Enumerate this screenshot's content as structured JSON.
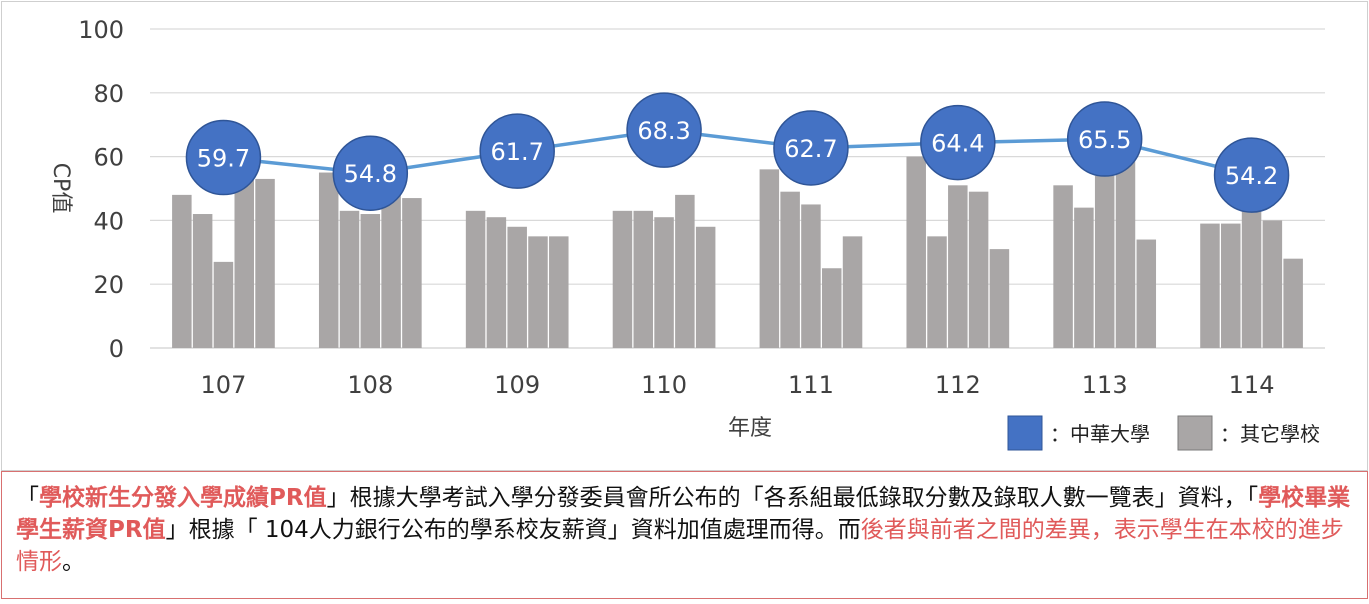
{
  "chart_data": {
    "type": "bar",
    "xlabel": "年度",
    "ylabel": "CP值",
    "ylim": [
      0,
      100
    ],
    "yticks": [
      0,
      20,
      40,
      60,
      80,
      100
    ],
    "grid": true,
    "categories": [
      "107",
      "108",
      "109",
      "110",
      "111",
      "112",
      "113",
      "114"
    ],
    "other_school_bars": [
      [
        48,
        42,
        27,
        57,
        53
      ],
      [
        55,
        43,
        42,
        48,
        47
      ],
      [
        43,
        41,
        38,
        35,
        35
      ],
      [
        43,
        43,
        41,
        48,
        38
      ],
      [
        56,
        49,
        45,
        25,
        35
      ],
      [
        60,
        35,
        51,
        49,
        31
      ],
      [
        51,
        44,
        54,
        60,
        34
      ],
      [
        39,
        39,
        44,
        40,
        28
      ]
    ],
    "line": {
      "values": [
        59.7,
        54.8,
        61.7,
        68.3,
        62.7,
        64.4,
        65.5,
        54.2
      ],
      "labels": [
        "59.7",
        "54.8",
        "61.7",
        "68.3",
        "62.7",
        "64.4",
        "65.5",
        "54.2"
      ]
    },
    "legend": {
      "position": "bottom-right",
      "items": [
        {
          "label": "：中華大學",
          "color": "#4472c4"
        },
        {
          "label": "：其它學校",
          "color": "#a9a6a6"
        }
      ]
    },
    "colors": {
      "line": "#5b9bd5",
      "bubble": "#4472c4",
      "bubble_border": "#2f5597",
      "bars": "#a9a6a6",
      "grid": "#d9d9d9"
    }
  },
  "note": {
    "p1": "「",
    "h1": "學校新生分發入學成績PR值",
    "p2": "」根據大學考試入學分發委員會所公布的「各系組最低錄取分數及錄取人數一覽表」資料，「",
    "h2": "學校畢業學生薪資PR值",
    "p3": "」根據「 104人力銀行公布的學系校友薪資」資料加值處理而得。而",
    "h3": "後者與前者之間的差異，表示學生在本校的進步情形",
    "p4": "。"
  }
}
